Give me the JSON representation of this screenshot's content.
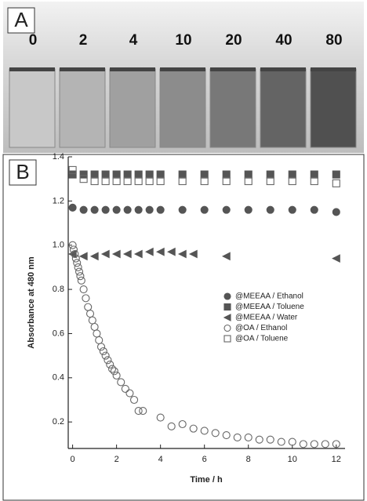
{
  "panel_a": {
    "label": "A",
    "vial_labels": [
      0,
      2,
      4,
      10,
      20,
      40,
      80
    ]
  },
  "chart_data": {
    "type": "scatter",
    "panel_label": "B",
    "xlabel": "Time / h",
    "ylabel": "Absorbance at 480 nm",
    "xlim": [
      -0.2,
      12.4
    ],
    "ylim": [
      0.08,
      1.4
    ],
    "xticks": [
      0,
      2,
      4,
      6,
      8,
      10,
      12
    ],
    "yticks": [
      0.2,
      0.4,
      0.6,
      0.8,
      {
        "value": 1,
        "label": "1.0"
      },
      1.2,
      1.4
    ],
    "legend": "center right",
    "series": [
      {
        "name": "@MEEAA / Ethanol",
        "marker": "circle",
        "filled": true,
        "color": "#555555",
        "x": [
          0,
          0.5,
          1,
          1.5,
          2,
          2.5,
          3,
          3.5,
          4,
          5,
          6,
          7,
          8,
          9,
          10,
          11,
          12
        ],
        "values": [
          1.17,
          1.16,
          1.16,
          1.16,
          1.16,
          1.16,
          1.16,
          1.16,
          1.16,
          1.16,
          1.16,
          1.16,
          1.16,
          1.16,
          1.16,
          1.16,
          1.15
        ]
      },
      {
        "name": "@MEEAA / Toluene",
        "marker": "square",
        "filled": true,
        "color": "#555555",
        "x": [
          0,
          0.5,
          1,
          1.5,
          2,
          2.5,
          3,
          3.5,
          4,
          5,
          6,
          7,
          8,
          9,
          10,
          11,
          12
        ],
        "values": [
          1.32,
          1.32,
          1.32,
          1.32,
          1.32,
          1.32,
          1.32,
          1.32,
          1.32,
          1.32,
          1.32,
          1.32,
          1.32,
          1.32,
          1.32,
          1.32,
          1.32
        ]
      },
      {
        "name": "@MEEAA / Water",
        "marker": "triangle",
        "filled": true,
        "color": "#555555",
        "x": [
          0,
          0.5,
          1,
          1.5,
          2,
          2.5,
          3,
          3.5,
          4,
          4.5,
          5,
          5.5,
          7,
          12
        ],
        "values": [
          0.96,
          0.95,
          0.95,
          0.96,
          0.96,
          0.96,
          0.96,
          0.97,
          0.97,
          0.97,
          0.96,
          0.96,
          0.95,
          0.94
        ]
      },
      {
        "name": "@OA / Ethanol",
        "marker": "circle",
        "filled": false,
        "color": "#666666",
        "x": [
          0,
          0.05,
          0.1,
          0.15,
          0.2,
          0.25,
          0.3,
          0.35,
          0.4,
          0.5,
          0.6,
          0.7,
          0.8,
          0.9,
          1.0,
          1.1,
          1.2,
          1.3,
          1.4,
          1.5,
          1.6,
          1.7,
          1.8,
          1.9,
          2.0,
          2.2,
          2.4,
          2.6,
          2.8,
          3.0,
          3.2,
          4,
          4.5,
          5,
          5.5,
          6,
          6.5,
          7,
          7.5,
          8,
          8.5,
          9,
          9.5,
          10,
          10.5,
          11,
          11.5,
          12
        ],
        "values": [
          1.0,
          0.98,
          0.96,
          0.94,
          0.92,
          0.9,
          0.88,
          0.86,
          0.84,
          0.8,
          0.76,
          0.72,
          0.69,
          0.66,
          0.63,
          0.6,
          0.57,
          0.54,
          0.52,
          0.5,
          0.48,
          0.46,
          0.44,
          0.43,
          0.41,
          0.38,
          0.35,
          0.33,
          0.3,
          0.25,
          0.25,
          0.22,
          0.18,
          0.19,
          0.17,
          0.16,
          0.15,
          0.14,
          0.13,
          0.13,
          0.12,
          0.12,
          0.11,
          0.11,
          0.1,
          0.1,
          0.1,
          0.1
        ]
      },
      {
        "name": "@OA / Toluene",
        "marker": "square",
        "filled": false,
        "color": "#666666",
        "x": [
          0,
          0.5,
          1,
          1.5,
          2,
          2.5,
          3,
          3.5,
          4,
          5,
          6,
          7,
          8,
          9,
          10,
          11,
          12
        ],
        "values": [
          1.34,
          1.3,
          1.29,
          1.29,
          1.29,
          1.29,
          1.29,
          1.29,
          1.29,
          1.29,
          1.29,
          1.29,
          1.29,
          1.29,
          1.29,
          1.29,
          1.28
        ]
      }
    ]
  }
}
